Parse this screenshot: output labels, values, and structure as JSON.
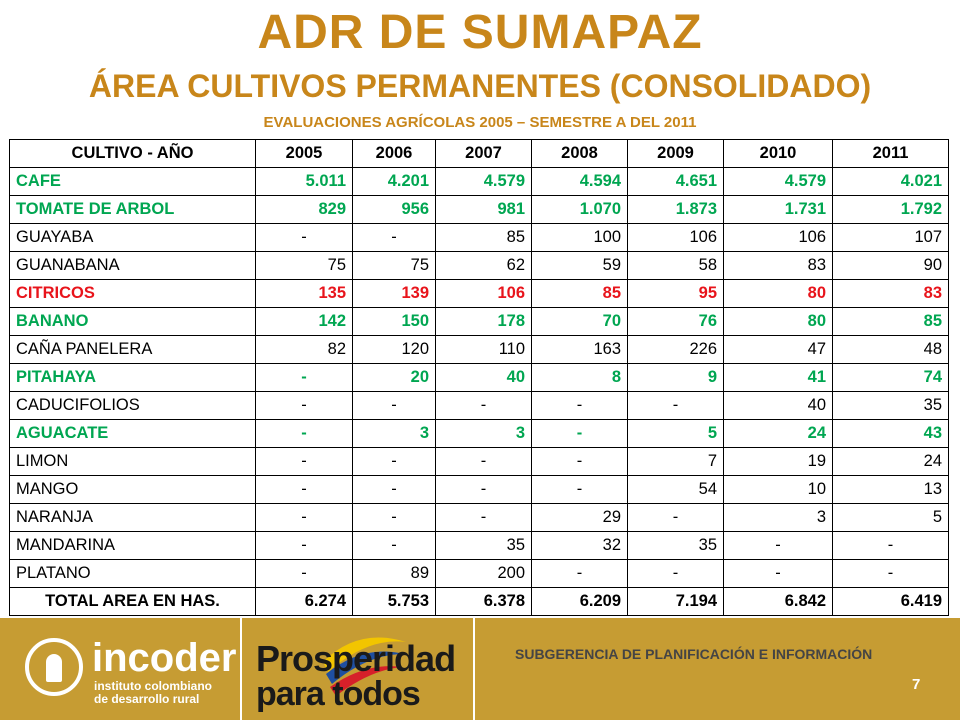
{
  "header": {
    "title": "ADR DE SUMAPAZ",
    "subtitle": "ÁREA CULTIVOS PERMANENTES (CONSOLIDADO)",
    "subtitle2": "EVALUACIONES AGRÍCOLAS 2005 – SEMESTRE A DEL 2011"
  },
  "colors": {
    "title": "#c8861a",
    "green": "#00a651",
    "red": "#e8141b",
    "footer": "#c69c33"
  },
  "table": {
    "headers": [
      "CULTIVO - AÑO",
      "2005",
      "2006",
      "2007",
      "2008",
      "2009",
      "2010",
      "2011"
    ],
    "rows": [
      {
        "name": "CAFE",
        "style": "green",
        "values": [
          "5.011",
          "4.201",
          "4.579",
          "4.594",
          "4.651",
          "4.579",
          "4.021"
        ]
      },
      {
        "name": "TOMATE DE ARBOL",
        "style": "green",
        "values": [
          "829",
          "956",
          "981",
          "1.070",
          "1.873",
          "1.731",
          "1.792"
        ]
      },
      {
        "name": "GUAYABA",
        "style": "plain",
        "values": [
          "-",
          "-",
          "85",
          "100",
          "106",
          "106",
          "107"
        ]
      },
      {
        "name": "GUANABANA",
        "style": "plain",
        "values": [
          "75",
          "75",
          "62",
          "59",
          "58",
          "83",
          "90"
        ]
      },
      {
        "name": "CITRICOS",
        "style": "red",
        "values": [
          "135",
          "139",
          "106",
          "85",
          "95",
          "80",
          "83"
        ]
      },
      {
        "name": "BANANO",
        "style": "green",
        "values": [
          "142",
          "150",
          "178",
          "70",
          "76",
          "80",
          "85"
        ]
      },
      {
        "name": "CAÑA PANELERA",
        "style": "plain",
        "values": [
          "82",
          "120",
          "110",
          "163",
          "226",
          "47",
          "48"
        ]
      },
      {
        "name": "PITAHAYA",
        "style": "green",
        "values": [
          "-",
          "20",
          "40",
          "8",
          "9",
          "41",
          "74"
        ]
      },
      {
        "name": "CADUCIFOLIOS",
        "style": "plain",
        "values": [
          "-",
          "-",
          "-",
          "-",
          "-",
          "40",
          "35"
        ]
      },
      {
        "name": "AGUACATE",
        "style": "green",
        "values": [
          "-",
          "3",
          "3",
          "-",
          "5",
          "24",
          "43"
        ]
      },
      {
        "name": "LIMON",
        "style": "plain",
        "values": [
          "-",
          "-",
          "-",
          "-",
          "7",
          "19",
          "24"
        ]
      },
      {
        "name": "MANGO",
        "style": "plain",
        "values": [
          "-",
          "-",
          "-",
          "-",
          "54",
          "10",
          "13"
        ]
      },
      {
        "name": "NARANJA",
        "style": "plain",
        "values": [
          "-",
          "-",
          "-",
          "29",
          "-",
          "3",
          "5"
        ]
      },
      {
        "name": "MANDARINA",
        "style": "plain",
        "values": [
          "-",
          "-",
          "35",
          "32",
          "35",
          "-",
          "-"
        ]
      },
      {
        "name": "PLATANO",
        "style": "plain",
        "values": [
          "-",
          "89",
          "200",
          "-",
          "-",
          "-",
          "-"
        ]
      }
    ],
    "total": {
      "name": "TOTAL AREA EN HAS.",
      "values": [
        "6.274",
        "5.753",
        "6.378",
        "6.209",
        "7.194",
        "6.842",
        "6.419"
      ]
    }
  },
  "footer": {
    "logo_name": "incoder",
    "logo_sub_line1": "instituto colombiano",
    "logo_sub_line2": "de desarrollo rural",
    "prosperidad_line1": "Prosperidad",
    "prosperidad_line2": "para todos",
    "subgerencia": "SUBGERENCIA DE PLANIFICACIÓN E INFORMACIÓN",
    "page_number": "7"
  }
}
